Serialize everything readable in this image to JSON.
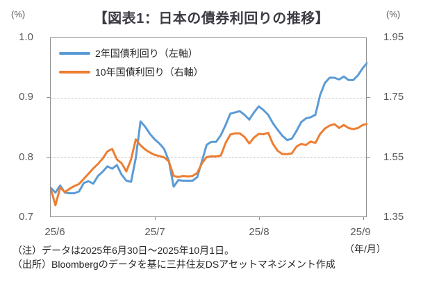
{
  "title": "【図表1：日本の債券利回りの推移】",
  "axis_units": {
    "left": "(%)",
    "right": "(%)",
    "x": "（年/月）"
  },
  "y_axis_left": {
    "ticks": [
      "1.0",
      "0.9",
      "0.8",
      "0.7"
    ]
  },
  "y_axis_right": {
    "ticks": [
      "1.95",
      "1.75",
      "1.55",
      "1.35"
    ]
  },
  "x_axis": {
    "ticks": [
      "25/6",
      "25/7",
      "25/8",
      "25/9"
    ]
  },
  "notes": {
    "line1": "（注）データは2025年6月30日～2025年10月1日。",
    "line2": "（出所）Bloombergのデータを基に三井住友DSアセットマネジメント作成"
  },
  "colors": {
    "series1": "#5B9BD5",
    "series2": "#ED7D31",
    "grid": "#bdbdbd",
    "axis": "#909090",
    "tick_label": "#595959",
    "title": "#3b3b43"
  },
  "chart_data": {
    "type": "line",
    "title": "【図表1：日本の債券利回りの推移】",
    "period": "2025年6月30日～2025年10月1日 (daily)",
    "x_tick_labels": [
      "25/6",
      "25/7",
      "25/8",
      "25/9"
    ],
    "x_unit": "年/月",
    "y_unit": "%",
    "left_ylim": [
      0.7,
      1.0
    ],
    "right_ylim": [
      1.35,
      1.95
    ],
    "grid": "horizontal-dotted",
    "legend_position": "top-left-inside",
    "series": [
      {
        "name": "2年国債利回り（左軸）",
        "axis": "left",
        "color": "#5B9BD5",
        "values": [
          0.75,
          0.742,
          0.754,
          0.742,
          0.741,
          0.741,
          0.744,
          0.758,
          0.761,
          0.757,
          0.77,
          0.777,
          0.786,
          0.782,
          0.788,
          0.772,
          0.762,
          0.76,
          0.8,
          0.861,
          0.852,
          0.84,
          0.831,
          0.824,
          0.815,
          0.795,
          0.752,
          0.763,
          0.762,
          0.762,
          0.762,
          0.768,
          0.795,
          0.822,
          0.827,
          0.827,
          0.838,
          0.855,
          0.874,
          0.876,
          0.878,
          0.872,
          0.864,
          0.876,
          0.886,
          0.88,
          0.872,
          0.858,
          0.847,
          0.837,
          0.83,
          0.832,
          0.845,
          0.86,
          0.866,
          0.868,
          0.872,
          0.905,
          0.925,
          0.934,
          0.934,
          0.931,
          0.936,
          0.93,
          0.93,
          0.938,
          0.95,
          0.959
        ]
      },
      {
        "name": "10年国債利回り（右軸）",
        "axis": "right",
        "color": "#ED7D31",
        "values": [
          1.447,
          1.392,
          1.451,
          1.436,
          1.447,
          1.456,
          1.463,
          1.48,
          1.497,
          1.515,
          1.53,
          1.548,
          1.572,
          1.58,
          1.545,
          1.532,
          1.505,
          1.545,
          1.612,
          1.592,
          1.578,
          1.568,
          1.56,
          1.556,
          1.552,
          1.538,
          1.49,
          1.486,
          1.49,
          1.488,
          1.49,
          1.5,
          1.532,
          1.553,
          1.555,
          1.555,
          1.558,
          1.6,
          1.628,
          1.632,
          1.632,
          1.62,
          1.598,
          1.618,
          1.63,
          1.629,
          1.634,
          1.597,
          1.574,
          1.563,
          1.563,
          1.565,
          1.588,
          1.597,
          1.593,
          1.605,
          1.6,
          1.63,
          1.648,
          1.658,
          1.663,
          1.65,
          1.66,
          1.65,
          1.646,
          1.65,
          1.66,
          1.664
        ]
      }
    ]
  }
}
